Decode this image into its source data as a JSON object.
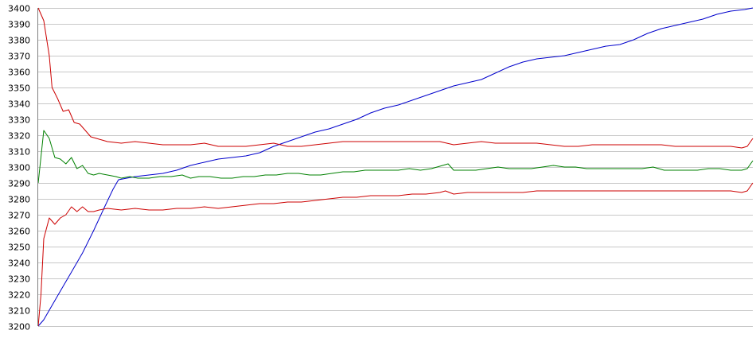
{
  "chart_data": {
    "type": "line",
    "title": "",
    "xlabel": "",
    "ylabel": "",
    "ylim": [
      3200,
      3400
    ],
    "yticks": [
      3200,
      3210,
      3220,
      3230,
      3240,
      3250,
      3260,
      3270,
      3280,
      3290,
      3300,
      3310,
      3320,
      3330,
      3340,
      3350,
      3360,
      3370,
      3380,
      3390,
      3400
    ],
    "grid": true,
    "legend": "none",
    "x_count": 180,
    "series": [
      {
        "color": "#0000cc",
        "points": [
          [
            0,
            3200
          ],
          [
            2,
            3204
          ],
          [
            4,
            3210
          ],
          [
            8,
            3222
          ],
          [
            12,
            3234
          ],
          [
            16,
            3246
          ],
          [
            20,
            3260
          ],
          [
            24,
            3275
          ],
          [
            27,
            3286
          ],
          [
            29,
            3292
          ],
          [
            32,
            3293
          ],
          [
            35,
            3294
          ],
          [
            40,
            3295
          ],
          [
            45,
            3296
          ],
          [
            50,
            3298
          ],
          [
            55,
            3301
          ],
          [
            60,
            3303
          ],
          [
            65,
            3305
          ],
          [
            70,
            3306
          ],
          [
            75,
            3307
          ],
          [
            80,
            3309
          ],
          [
            85,
            3313
          ],
          [
            90,
            3316
          ],
          [
            95,
            3319
          ],
          [
            100,
            3322
          ],
          [
            105,
            3324
          ],
          [
            110,
            3327
          ],
          [
            115,
            3330
          ],
          [
            120,
            3334
          ],
          [
            125,
            3337
          ],
          [
            130,
            3339
          ],
          [
            135,
            3342
          ],
          [
            140,
            3345
          ],
          [
            145,
            3348
          ],
          [
            150,
            3351
          ],
          [
            155,
            3353
          ],
          [
            160,
            3355
          ],
          [
            165,
            3359
          ],
          [
            170,
            3363
          ],
          [
            175,
            3366
          ],
          [
            180,
            3368
          ],
          [
            185,
            3369
          ],
          [
            190,
            3370
          ],
          [
            195,
            3372
          ],
          [
            200,
            3374
          ],
          [
            205,
            3376
          ],
          [
            210,
            3377
          ],
          [
            215,
            3380
          ],
          [
            220,
            3384
          ],
          [
            225,
            3387
          ],
          [
            230,
            3389
          ],
          [
            235,
            3391
          ],
          [
            240,
            3393
          ],
          [
            245,
            3396
          ],
          [
            250,
            3398
          ],
          [
            255,
            3399
          ],
          [
            258,
            3400
          ]
        ]
      },
      {
        "color": "#008000",
        "points": [
          [
            0,
            3290
          ],
          [
            2,
            3323
          ],
          [
            4,
            3318
          ],
          [
            6,
            3306
          ],
          [
            8,
            3305
          ],
          [
            10,
            3302
          ],
          [
            12,
            3306
          ],
          [
            14,
            3299
          ],
          [
            16,
            3301
          ],
          [
            18,
            3296
          ],
          [
            20,
            3295
          ],
          [
            22,
            3296
          ],
          [
            25,
            3295
          ],
          [
            28,
            3294
          ],
          [
            30,
            3293
          ],
          [
            33,
            3294
          ],
          [
            36,
            3293
          ],
          [
            40,
            3293
          ],
          [
            44,
            3294
          ],
          [
            48,
            3294
          ],
          [
            52,
            3295
          ],
          [
            55,
            3293
          ],
          [
            58,
            3294
          ],
          [
            62,
            3294
          ],
          [
            66,
            3293
          ],
          [
            70,
            3293
          ],
          [
            74,
            3294
          ],
          [
            78,
            3294
          ],
          [
            82,
            3295
          ],
          [
            86,
            3295
          ],
          [
            90,
            3296
          ],
          [
            94,
            3296
          ],
          [
            98,
            3295
          ],
          [
            102,
            3295
          ],
          [
            106,
            3296
          ],
          [
            110,
            3297
          ],
          [
            114,
            3297
          ],
          [
            118,
            3298
          ],
          [
            122,
            3298
          ],
          [
            126,
            3298
          ],
          [
            130,
            3298
          ],
          [
            134,
            3299
          ],
          [
            138,
            3298
          ],
          [
            142,
            3299
          ],
          [
            146,
            3301
          ],
          [
            148,
            3302
          ],
          [
            150,
            3298
          ],
          [
            154,
            3298
          ],
          [
            158,
            3298
          ],
          [
            162,
            3299
          ],
          [
            166,
            3300
          ],
          [
            170,
            3299
          ],
          [
            174,
            3299
          ],
          [
            178,
            3299
          ],
          [
            182,
            3300
          ],
          [
            186,
            3301
          ],
          [
            190,
            3300
          ],
          [
            194,
            3300
          ],
          [
            198,
            3299
          ],
          [
            202,
            3299
          ],
          [
            206,
            3299
          ],
          [
            210,
            3299
          ],
          [
            214,
            3299
          ],
          [
            218,
            3299
          ],
          [
            222,
            3300
          ],
          [
            226,
            3298
          ],
          [
            230,
            3298
          ],
          [
            234,
            3298
          ],
          [
            238,
            3298
          ],
          [
            242,
            3299
          ],
          [
            246,
            3299
          ],
          [
            250,
            3298
          ],
          [
            252,
            3298
          ],
          [
            254,
            3298
          ],
          [
            256,
            3299
          ],
          [
            258,
            3304
          ]
        ]
      },
      {
        "color": "#cc0000",
        "points": [
          [
            0,
            3400
          ],
          [
            2,
            3392
          ],
          [
            4,
            3370
          ],
          [
            5,
            3350
          ],
          [
            7,
            3343
          ],
          [
            9,
            3335
          ],
          [
            11,
            3336
          ],
          [
            13,
            3328
          ],
          [
            15,
            3327
          ],
          [
            17,
            3323
          ],
          [
            19,
            3319
          ],
          [
            21,
            3318
          ],
          [
            23,
            3317
          ],
          [
            25,
            3316
          ],
          [
            30,
            3315
          ],
          [
            35,
            3316
          ],
          [
            40,
            3315
          ],
          [
            45,
            3314
          ],
          [
            50,
            3314
          ],
          [
            55,
            3314
          ],
          [
            60,
            3315
          ],
          [
            65,
            3313
          ],
          [
            70,
            3313
          ],
          [
            75,
            3313
          ],
          [
            80,
            3314
          ],
          [
            85,
            3315
          ],
          [
            90,
            3313
          ],
          [
            95,
            3313
          ],
          [
            100,
            3314
          ],
          [
            105,
            3315
          ],
          [
            110,
            3316
          ],
          [
            115,
            3316
          ],
          [
            120,
            3316
          ],
          [
            125,
            3316
          ],
          [
            130,
            3316
          ],
          [
            135,
            3316
          ],
          [
            140,
            3316
          ],
          [
            145,
            3316
          ],
          [
            150,
            3314
          ],
          [
            155,
            3315
          ],
          [
            160,
            3316
          ],
          [
            165,
            3315
          ],
          [
            170,
            3315
          ],
          [
            175,
            3315
          ],
          [
            180,
            3315
          ],
          [
            185,
            3314
          ],
          [
            190,
            3313
          ],
          [
            195,
            3313
          ],
          [
            200,
            3314
          ],
          [
            205,
            3314
          ],
          [
            210,
            3314
          ],
          [
            215,
            3314
          ],
          [
            220,
            3314
          ],
          [
            225,
            3314
          ],
          [
            230,
            3313
          ],
          [
            235,
            3313
          ],
          [
            240,
            3313
          ],
          [
            245,
            3313
          ],
          [
            250,
            3313
          ],
          [
            254,
            3312
          ],
          [
            256,
            3313
          ],
          [
            258,
            3318
          ]
        ]
      },
      {
        "color": "#cc0000",
        "points": [
          [
            0,
            3200
          ],
          [
            1,
            3220
          ],
          [
            2,
            3255
          ],
          [
            4,
            3268
          ],
          [
            6,
            3264
          ],
          [
            8,
            3268
          ],
          [
            10,
            3270
          ],
          [
            12,
            3275
          ],
          [
            14,
            3272
          ],
          [
            16,
            3275
          ],
          [
            18,
            3272
          ],
          [
            20,
            3272
          ],
          [
            22,
            3273
          ],
          [
            25,
            3274
          ],
          [
            30,
            3273
          ],
          [
            35,
            3274
          ],
          [
            40,
            3273
          ],
          [
            45,
            3273
          ],
          [
            50,
            3274
          ],
          [
            55,
            3274
          ],
          [
            60,
            3275
          ],
          [
            65,
            3274
          ],
          [
            70,
            3275
          ],
          [
            75,
            3276
          ],
          [
            80,
            3277
          ],
          [
            85,
            3277
          ],
          [
            90,
            3278
          ],
          [
            95,
            3278
          ],
          [
            100,
            3279
          ],
          [
            105,
            3280
          ],
          [
            110,
            3281
          ],
          [
            115,
            3281
          ],
          [
            120,
            3282
          ],
          [
            125,
            3282
          ],
          [
            130,
            3282
          ],
          [
            135,
            3283
          ],
          [
            140,
            3283
          ],
          [
            145,
            3284
          ],
          [
            147,
            3285
          ],
          [
            150,
            3283
          ],
          [
            155,
            3284
          ],
          [
            160,
            3284
          ],
          [
            165,
            3284
          ],
          [
            170,
            3284
          ],
          [
            175,
            3284
          ],
          [
            180,
            3285
          ],
          [
            185,
            3285
          ],
          [
            190,
            3285
          ],
          [
            195,
            3285
          ],
          [
            200,
            3285
          ],
          [
            205,
            3285
          ],
          [
            210,
            3285
          ],
          [
            215,
            3285
          ],
          [
            220,
            3285
          ],
          [
            225,
            3285
          ],
          [
            230,
            3285
          ],
          [
            235,
            3285
          ],
          [
            240,
            3285
          ],
          [
            245,
            3285
          ],
          [
            250,
            3285
          ],
          [
            254,
            3284
          ],
          [
            256,
            3285
          ],
          [
            258,
            3290
          ]
        ]
      }
    ]
  }
}
